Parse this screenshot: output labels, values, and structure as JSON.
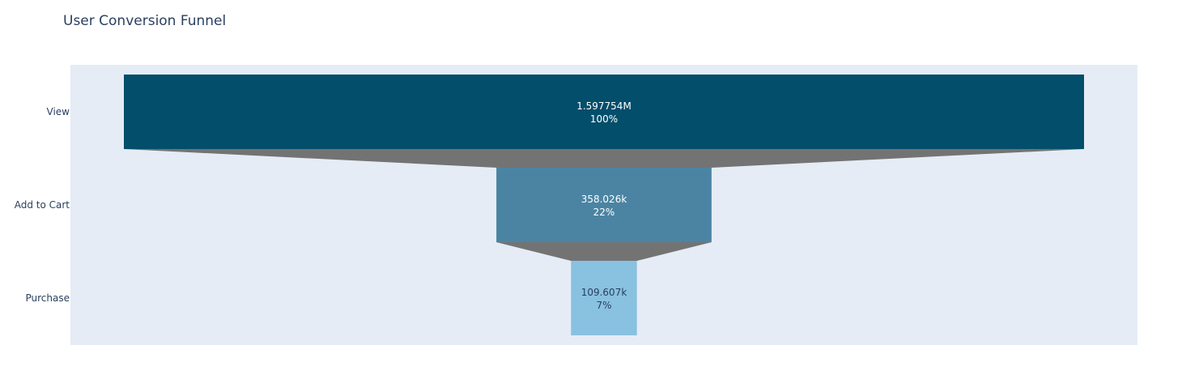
{
  "chart_data": {
    "type": "funnel",
    "title": "User Conversion Funnel",
    "xlabel": "",
    "ylabel": "",
    "categories": [
      "View",
      "Add to Cart",
      "Purchase"
    ],
    "values": [
      1597754,
      358026,
      109607
    ],
    "value_labels": [
      "1.597754M",
      "358.026k",
      "109.607k"
    ],
    "percent_labels": [
      "100%",
      "22%",
      "7%"
    ],
    "colors": [
      "#034e6b",
      "#4b84a3",
      "#89c1e0"
    ],
    "label_colors": [
      "#ffffff",
      "#ffffff",
      "#2a3f5f"
    ],
    "connector_color": "#737373",
    "plot_background": "#e5ecf6",
    "grid": false,
    "legend": "none"
  }
}
